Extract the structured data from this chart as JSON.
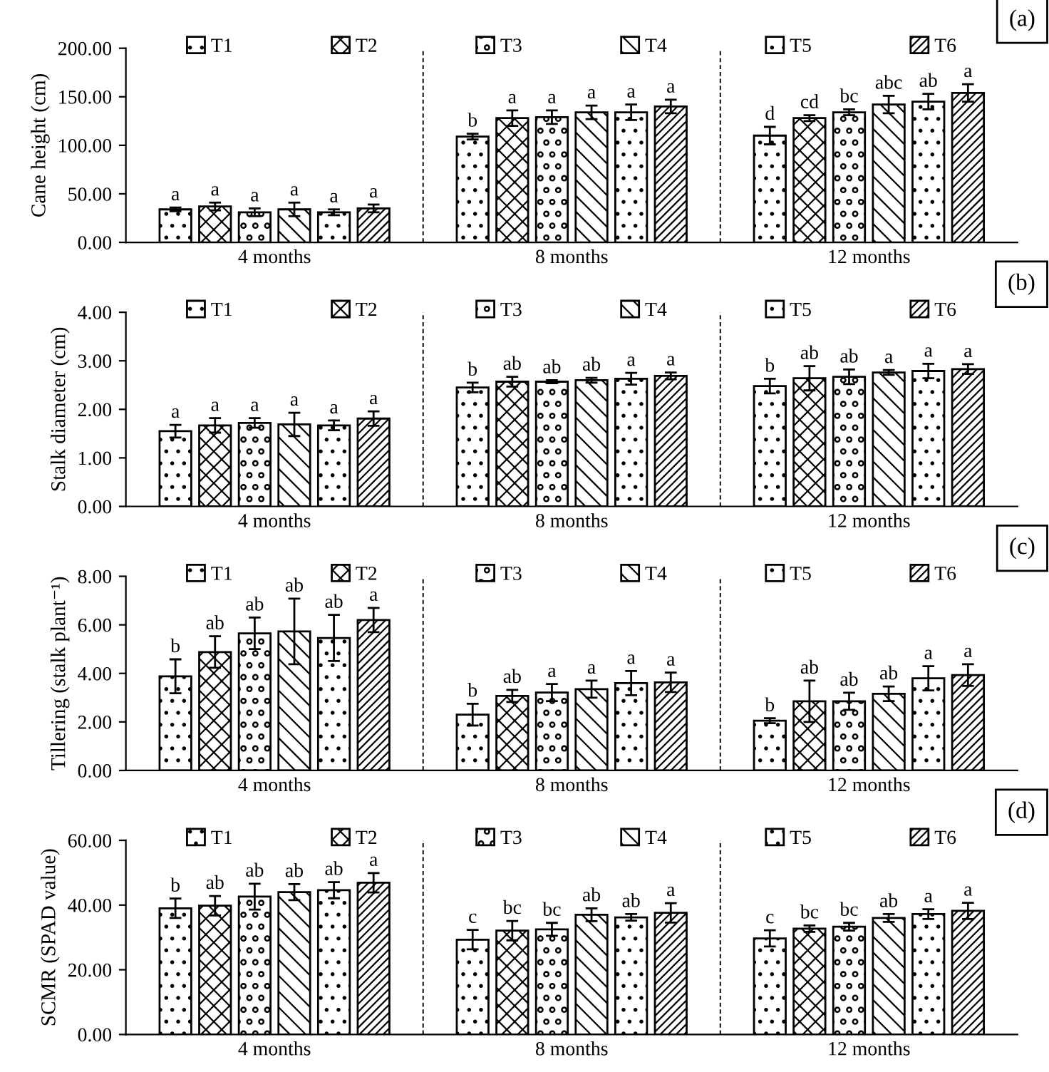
{
  "chart_data": [
    {
      "type": "bar",
      "title": "(a)",
      "ylabel": "Cane height (cm)",
      "categories": [
        "4 months",
        "8 months",
        "12 months"
      ],
      "ylim": [
        0,
        200
      ],
      "yticks": [
        {
          "value": 0,
          "label": "0.00"
        },
        {
          "value": 50,
          "label": "50.00"
        },
        {
          "value": 100,
          "label": "100.00"
        },
        {
          "value": 150,
          "label": "150.00"
        },
        {
          "value": 200,
          "label": "200.00"
        }
      ],
      "grid": "x",
      "legend": "top",
      "series": [
        {
          "name": "T1",
          "color": "#000000",
          "values": [
            34,
            109,
            110
          ],
          "errors": [
            2,
            3,
            9
          ],
          "value_labels": [
            "a",
            "b",
            "d"
          ]
        },
        {
          "name": "T2",
          "color": "#000000",
          "values": [
            37,
            128,
            128
          ],
          "errors": [
            4,
            8,
            3
          ],
          "value_labels": [
            "a",
            "a",
            "cd"
          ]
        },
        {
          "name": "T3",
          "color": "#000000",
          "values": [
            31,
            129,
            134
          ],
          "errors": [
            4,
            7,
            3
          ],
          "value_labels": [
            "a",
            "a",
            "bc"
          ]
        },
        {
          "name": "T4",
          "color": "#000000",
          "values": [
            34,
            134,
            142
          ],
          "errors": [
            7,
            7,
            9
          ],
          "value_labels": [
            "a",
            "a",
            "abc"
          ]
        },
        {
          "name": "T5",
          "color": "#000000",
          "values": [
            31,
            134,
            145
          ],
          "errors": [
            3,
            8,
            8
          ],
          "value_labels": [
            "a",
            "a",
            "ab"
          ]
        },
        {
          "name": "T6",
          "color": "#000000",
          "values": [
            35,
            140,
            154
          ],
          "errors": [
            4,
            7,
            9
          ],
          "value_labels": [
            "a",
            "a",
            "a"
          ]
        }
      ]
    },
    {
      "type": "bar",
      "title": "(b)",
      "ylabel": "Stalk diameter (cm)",
      "categories": [
        "4 months",
        "8 months",
        "12 months"
      ],
      "ylim": [
        0,
        4
      ],
      "yticks": [
        {
          "value": 0,
          "label": "0.00"
        },
        {
          "value": 1,
          "label": "1.00"
        },
        {
          "value": 2,
          "label": "2.00"
        },
        {
          "value": 3,
          "label": "3.00"
        },
        {
          "value": 4,
          "label": "4.00"
        }
      ],
      "grid": "x",
      "legend": "top",
      "series": [
        {
          "name": "T1",
          "color": "#000000",
          "values": [
            1.55,
            2.45,
            2.48
          ],
          "errors": [
            0.13,
            0.1,
            0.15
          ],
          "value_labels": [
            "a",
            "b",
            "b"
          ]
        },
        {
          "name": "T2",
          "color": "#000000",
          "values": [
            1.67,
            2.57,
            2.64
          ],
          "errors": [
            0.15,
            0.1,
            0.25
          ],
          "value_labels": [
            "a",
            "ab",
            "ab"
          ]
        },
        {
          "name": "T3",
          "color": "#000000",
          "values": [
            1.72,
            2.57,
            2.67
          ],
          "errors": [
            0.1,
            0.03,
            0.15
          ],
          "value_labels": [
            "a",
            "ab",
            "ab"
          ]
        },
        {
          "name": "T4",
          "color": "#000000",
          "values": [
            1.69,
            2.6,
            2.76
          ],
          "errors": [
            0.24,
            0.05,
            0.05
          ],
          "value_labels": [
            "a",
            "ab",
            "a"
          ]
        },
        {
          "name": "T5",
          "color": "#000000",
          "values": [
            1.67,
            2.63,
            2.79
          ],
          "errors": [
            0.1,
            0.12,
            0.15
          ],
          "value_labels": [
            "a",
            "a",
            "a"
          ]
        },
        {
          "name": "T6",
          "color": "#000000",
          "values": [
            1.81,
            2.69,
            2.83
          ],
          "errors": [
            0.15,
            0.07,
            0.1
          ],
          "value_labels": [
            "a",
            "a",
            "a"
          ]
        }
      ]
    },
    {
      "type": "bar",
      "title": "(c)",
      "ylabel": "Tillering (stalk plant⁻¹)",
      "categories": [
        "4 months",
        "8 months",
        "12 months"
      ],
      "ylim": [
        0,
        8
      ],
      "yticks": [
        {
          "value": 0,
          "label": "0.00"
        },
        {
          "value": 2,
          "label": "2.00"
        },
        {
          "value": 4,
          "label": "4.00"
        },
        {
          "value": 6,
          "label": "6.00"
        },
        {
          "value": 8,
          "label": "8.00"
        }
      ],
      "grid": "x",
      "legend": "top",
      "series": [
        {
          "name": "T1",
          "color": "#000000",
          "values": [
            3.88,
            2.3,
            2.05
          ],
          "errors": [
            0.7,
            0.45,
            0.1
          ],
          "value_labels": [
            "b",
            "b",
            "b"
          ]
        },
        {
          "name": "T2",
          "color": "#000000",
          "values": [
            4.88,
            3.07,
            2.85
          ],
          "errors": [
            0.65,
            0.25,
            0.85
          ],
          "value_labels": [
            "ab",
            "ab",
            "ab"
          ]
        },
        {
          "name": "T3",
          "color": "#000000",
          "values": [
            5.65,
            3.21,
            2.85
          ],
          "errors": [
            0.65,
            0.35,
            0.35
          ],
          "value_labels": [
            "ab",
            "a",
            "ab"
          ]
        },
        {
          "name": "T4",
          "color": "#000000",
          "values": [
            5.73,
            3.35,
            3.16
          ],
          "errors": [
            1.35,
            0.35,
            0.3
          ],
          "value_labels": [
            "ab",
            "a",
            "ab"
          ]
        },
        {
          "name": "T5",
          "color": "#000000",
          "values": [
            5.46,
            3.6,
            3.8
          ],
          "errors": [
            0.95,
            0.5,
            0.5
          ],
          "value_labels": [
            "ab",
            "a",
            "a"
          ]
        },
        {
          "name": "T6",
          "color": "#000000",
          "values": [
            6.2,
            3.63,
            3.93
          ],
          "errors": [
            0.5,
            0.4,
            0.45
          ],
          "value_labels": [
            "a",
            "a",
            "a"
          ]
        }
      ]
    },
    {
      "type": "bar",
      "title": "(d)",
      "ylabel": "SCMR (SPAD value)",
      "categories": [
        "4 months",
        "8 months",
        "12 months"
      ],
      "ylim": [
        0,
        60
      ],
      "yticks": [
        {
          "value": 0,
          "label": "0.00"
        },
        {
          "value": 20,
          "label": "20.00"
        },
        {
          "value": 40,
          "label": "40.00"
        },
        {
          "value": 60,
          "label": "60.00"
        }
      ],
      "grid": "x",
      "legend": "top",
      "series": [
        {
          "name": "T1",
          "color": "#000000",
          "values": [
            39,
            29.3,
            29.7
          ],
          "errors": [
            3,
            3,
            2.5
          ],
          "value_labels": [
            "b",
            "c",
            "c"
          ]
        },
        {
          "name": "T2",
          "color": "#000000",
          "values": [
            39.8,
            32.1,
            32.7
          ],
          "errors": [
            3,
            3,
            1
          ],
          "value_labels": [
            "ab",
            "bc",
            "bc"
          ]
        },
        {
          "name": "T3",
          "color": "#000000",
          "values": [
            42.6,
            32.5,
            33.3
          ],
          "errors": [
            4,
            2,
            1.2
          ],
          "value_labels": [
            "ab",
            "bc",
            "bc"
          ]
        },
        {
          "name": "T4",
          "color": "#000000",
          "values": [
            44,
            37,
            36
          ],
          "errors": [
            2.5,
            2,
            1.2
          ],
          "value_labels": [
            "ab",
            "ab",
            "ab"
          ]
        },
        {
          "name": "T5",
          "color": "#000000",
          "values": [
            44.6,
            36.2,
            37.2
          ],
          "errors": [
            2.5,
            1,
            1.5
          ],
          "value_labels": [
            "ab",
            "ab",
            "a"
          ]
        },
        {
          "name": "T6",
          "color": "#000000",
          "values": [
            46.9,
            37.6,
            38.2
          ],
          "errors": [
            3,
            3,
            2.5
          ],
          "value_labels": [
            "a",
            "a",
            "a"
          ]
        }
      ]
    }
  ]
}
